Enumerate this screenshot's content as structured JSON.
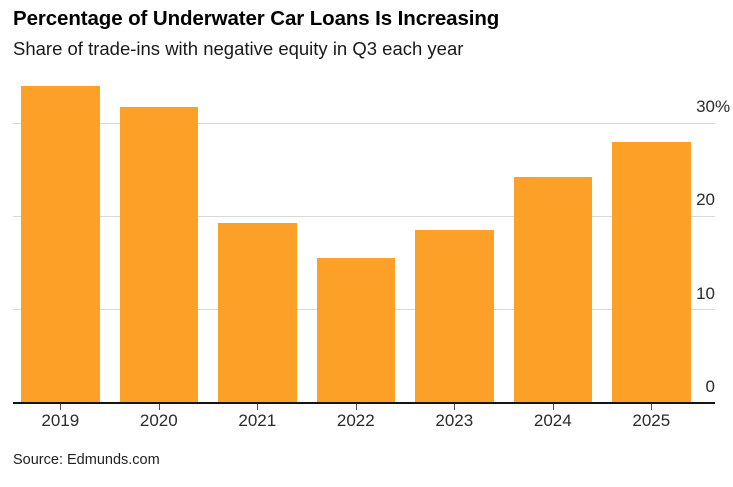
{
  "chart_data": {
    "type": "bar",
    "title": "Percentage of Underwater Car Loans Is Increasing",
    "subtitle": "Share of trade-ins with negative equity in Q3 each year",
    "source": "Source: Edmunds.com",
    "categories": [
      "2019",
      "2020",
      "2021",
      "2022",
      "2023",
      "2024",
      "2025"
    ],
    "values": [
      34.0,
      31.7,
      19.3,
      15.5,
      18.5,
      24.2,
      28.0
    ],
    "unit": "%",
    "xlabel": "",
    "ylabel": "",
    "ylim": [
      0,
      34.5
    ],
    "y_ticks": [
      {
        "value": 0,
        "label": "0"
      },
      {
        "value": 10,
        "label": "10"
      },
      {
        "value": 20,
        "label": "20"
      },
      {
        "value": 30,
        "label": "30%"
      }
    ],
    "grid": "horizontal",
    "y_tick_side": "right",
    "legend": "none"
  },
  "colors": {
    "bar": "#FCA028",
    "gridline": "#D9D9D9",
    "axis_line": "#141414",
    "tick": "#4D4D4D",
    "axis_text": "#2B2B2B",
    "title_text": "#000000",
    "subtitle_text": "#1A1A1A",
    "source_text": "#1F1F1F",
    "background": "#FFFFFF"
  }
}
